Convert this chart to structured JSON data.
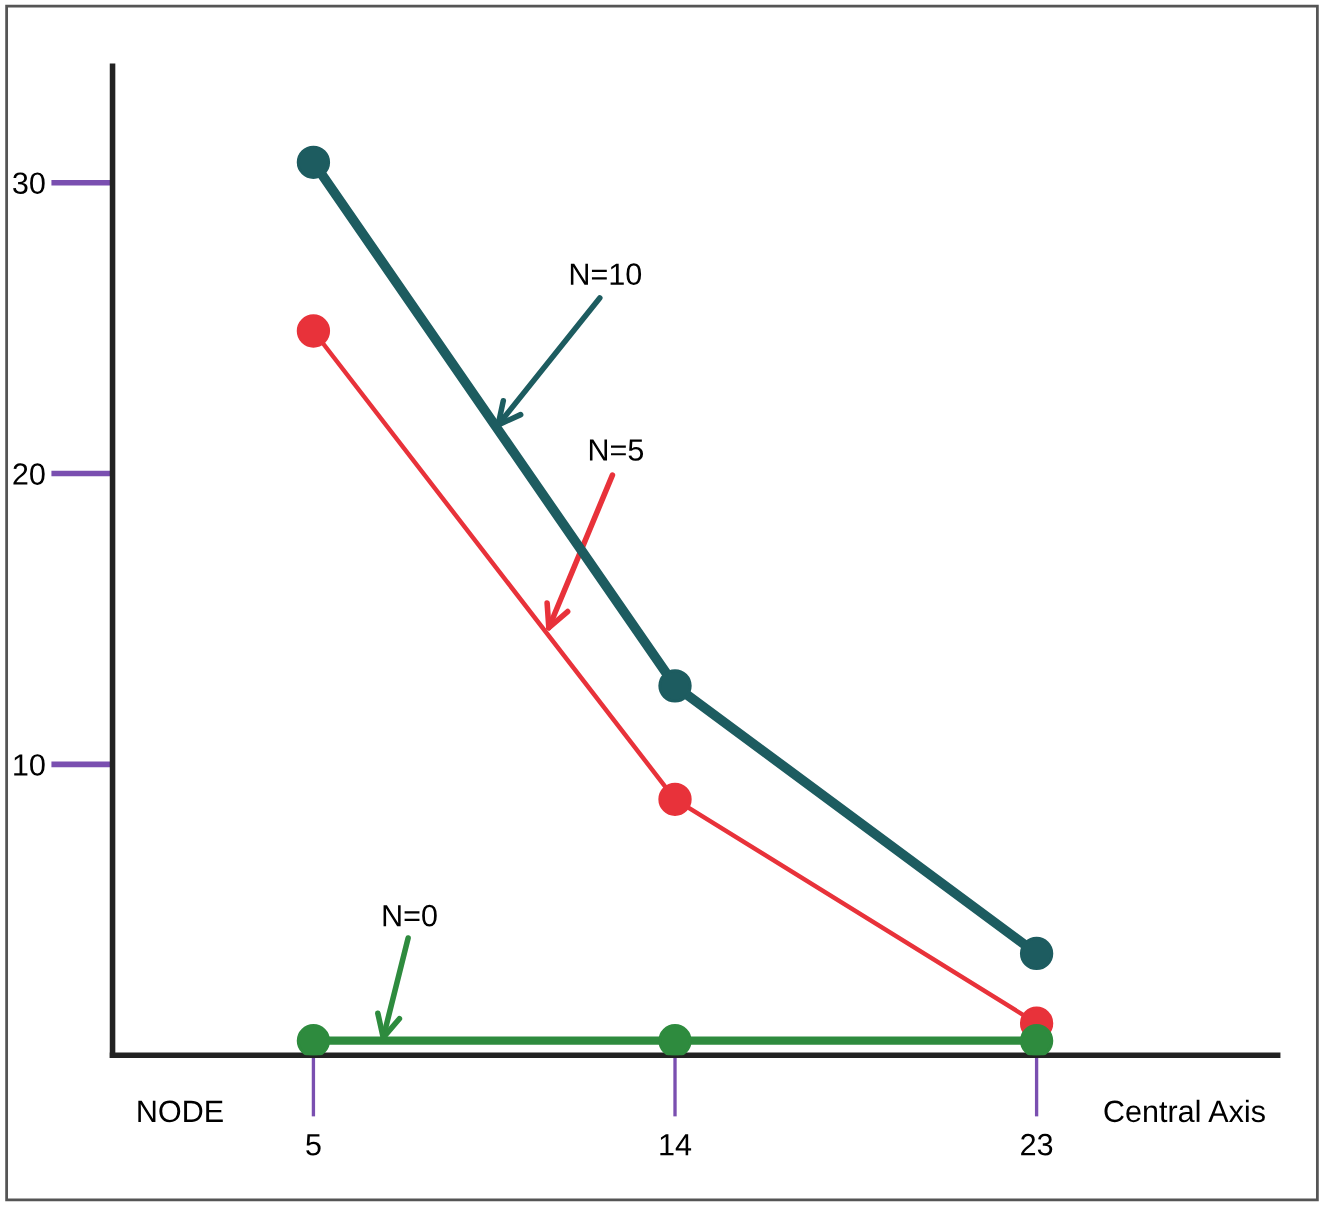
{
  "chart_data": {
    "type": "line",
    "xlabel": "Central Axis",
    "x": [
      5,
      14,
      23
    ],
    "xlim": [
      0,
      29
    ],
    "xticks": [
      5,
      14,
      23
    ],
    "ylim": [
      0,
      34
    ],
    "yticks": [
      10,
      20,
      30
    ],
    "marker": "circle",
    "line_style": "solid",
    "grid": false,
    "legend": false,
    "series": [
      {
        "color": "#1d5c60",
        "values": [
          30.7,
          12.7,
          3.5
        ]
      },
      {
        "color": "#e8323a",
        "values": [
          24.9,
          8.8,
          1.1
        ]
      },
      {
        "color": "#2e8b3e",
        "values": [
          0.5,
          0.5,
          0.5
        ]
      }
    ],
    "annotations": [
      {
        "text": "N=10",
        "x": 9.5,
        "y": 21.5
      },
      {
        "text": "N=5",
        "x": 10.8,
        "y": 14.5
      },
      {
        "text": "N=0",
        "x": 6.7,
        "y": 0.4
      },
      "NODE"
    ]
  }
}
